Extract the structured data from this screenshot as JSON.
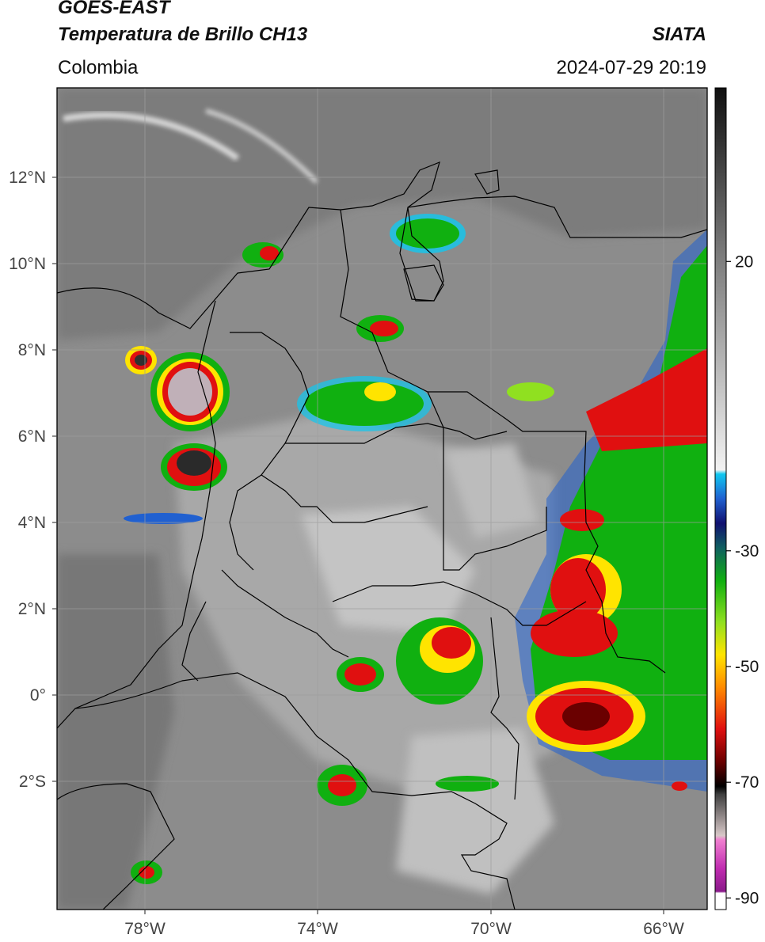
{
  "header": {
    "satellite": "GOES-EAST",
    "product": "Temperatura de Brillo CH13",
    "region": "Colombia",
    "agency": "SIATA",
    "datetime": "2024-07-29 20:19"
  },
  "map": {
    "lon_labels": [
      "78°W",
      "74°W",
      "70°W",
      "66°W"
    ],
    "lat_labels": [
      "12°N",
      "10°N",
      "8°N",
      "6°N",
      "4°N",
      "2°N",
      "0°",
      "2°S"
    ],
    "background_color": "#8a8a8a"
  },
  "colorbar": {
    "tick_labels": [
      "20",
      "-30",
      "-50",
      "-70",
      "-90"
    ],
    "ticks_celsius": [
      20,
      -30,
      -50,
      -70,
      -90
    ],
    "range_celsius": [
      -92,
      50
    ]
  }
}
